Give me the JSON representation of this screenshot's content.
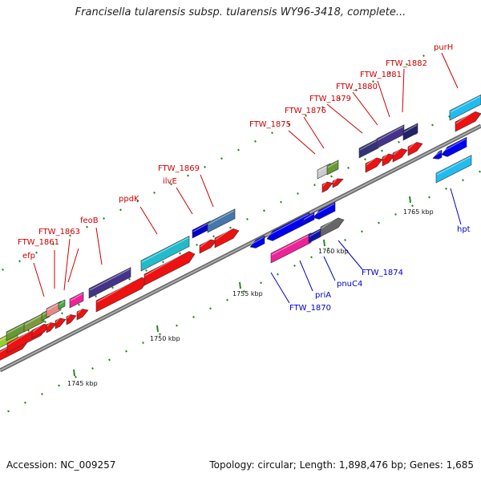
{
  "title": "Francisella tularensis subsp. tularensis WY96-3418, complete...",
  "footer": {
    "accession": "Accession: NC_009257",
    "summary": "Topology: circular; Length: 1,898,476 bp; Genes: 1,685"
  },
  "colors": {
    "label_top": "#cc0000",
    "label_bottom": "#0000cc",
    "backbone": "#888888",
    "ticks": "#228822"
  },
  "scale_labels": [
    "1745 kbp",
    "1750 kbp",
    "1755 kbp",
    "1760 kbp",
    "1765 kbp"
  ],
  "top_labels": [
    "efp",
    "FTW_1861",
    "FTW_1863",
    "feoB",
    "ppdK",
    "ilvE",
    "FTW_1869",
    "FTW_1875",
    "FTW_1876",
    "FTW_1879",
    "FTW_1880",
    "FTW_1881",
    "FTW_1882",
    "purH"
  ],
  "bottom_labels": [
    "FTW_1870",
    "priA",
    "pnuC4",
    "FTW_1874",
    "hpt"
  ]
}
